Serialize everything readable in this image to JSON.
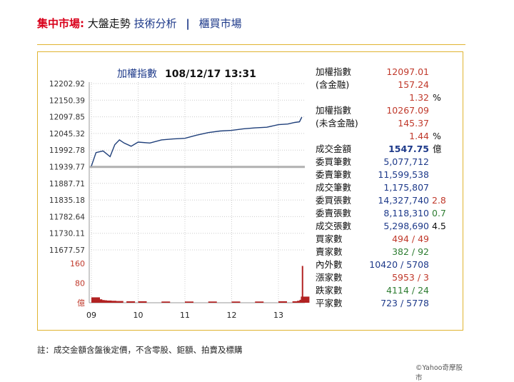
{
  "nav": {
    "lead": "集中市場:",
    "current": "大盤走勢",
    "tech": "技術分析",
    "separator": "|",
    "otc": "櫃買市場"
  },
  "chart_title": "加權指數",
  "chart_time": "108/12/17 13:31",
  "credit": "©Yahoo奇摩股市",
  "footnote": "註：成交金額含盤後定價，不含零股、鉅額、拍賣及標購",
  "stats": [
    {
      "label": "加權指數",
      "value": "12097.01",
      "color": "red"
    },
    {
      "label": "(含金融)",
      "value": "157.24",
      "color": "red"
    },
    {
      "label": "",
      "value": "1.32",
      "color": "red",
      "unit": "%"
    },
    {
      "label": "加權指數",
      "value": "10267.09",
      "color": "red"
    },
    {
      "label": "(未含金融)",
      "value": "145.37",
      "color": "red"
    },
    {
      "label": "",
      "value": "1.44",
      "color": "red",
      "unit": "%"
    },
    {
      "label": "成交金額",
      "value": "1547.75",
      "color": "blue",
      "bold": true,
      "unit": "億"
    },
    {
      "label": "委買筆數",
      "value": "5,077,712",
      "color": "blue"
    },
    {
      "label": "委賣筆數",
      "value": "11,599,538",
      "color": "blue"
    },
    {
      "label": "成交筆數",
      "value": "1,175,807",
      "color": "blue"
    },
    {
      "label": "委買張數",
      "value": "14,327,740",
      "color": "blue",
      "extra": "2.8",
      "extra_color": "red"
    },
    {
      "label": "委賣張數",
      "value": "8,118,310",
      "color": "blue",
      "extra": "0.7",
      "extra_color": "green"
    },
    {
      "label": "成交張數",
      "value": "5,298,690",
      "color": "blue",
      "extra": "4.5",
      "extra_color": "dark"
    },
    {
      "label": "買家數",
      "value": "494 / 49",
      "color": "red"
    },
    {
      "label": "賣家數",
      "value": "382 / 92",
      "color": "green"
    },
    {
      "label": "內外數",
      "value": "10420 / 5708",
      "color": "blue"
    },
    {
      "label": "漲家數",
      "value": "5953 / 3",
      "color": "red"
    },
    {
      "label": "跌家數",
      "value": "4114 / 24",
      "color": "green"
    },
    {
      "label": "平家數",
      "value": "723 / 5778",
      "color": "blue"
    }
  ],
  "colors": {
    "line": "#1f3f7a",
    "reference": "#b0b0b0",
    "volume": "#b22222",
    "grid": "#cccccc"
  },
  "chart_data": {
    "type": "line",
    "y_ticks": [
      "12202.92",
      "12150.39",
      "12097.85",
      "12045.32",
      "11992.78",
      "11939.77",
      "11887.71",
      "11835.18",
      "11782.64",
      "11730.11",
      "11677.57"
    ],
    "ylim": [
      11677.57,
      12202.92
    ],
    "reference": 11939.77,
    "x_ticks": [
      "09",
      "10",
      "11",
      "12",
      "13"
    ],
    "x_time": [
      9.0,
      9.1,
      9.25,
      9.4,
      9.5,
      9.6,
      9.7,
      9.85,
      10.0,
      10.25,
      10.5,
      10.75,
      11.0,
      11.25,
      11.5,
      11.75,
      12.0,
      12.25,
      12.5,
      12.75,
      13.0,
      13.2,
      13.35,
      13.45,
      13.5
    ],
    "index_values": [
      11942,
      11985,
      11990,
      11972,
      12010,
      12025,
      12015,
      12005,
      12018,
      12015,
      12025,
      12028,
      12030,
      12040,
      12048,
      12053,
      12055,
      12060,
      12063,
      12065,
      12073,
      12075,
      12080,
      12082,
      12097
    ],
    "volume_ticks": [
      "160",
      "80",
      "億"
    ],
    "volume_max": 160,
    "volume_time": [
      9.0,
      9.05,
      9.1,
      9.15,
      9.25,
      9.35,
      9.5,
      9.75,
      10.0,
      10.5,
      11.0,
      11.5,
      12.0,
      12.5,
      13.0,
      13.3,
      13.4,
      13.45,
      13.48,
      13.5
    ],
    "volume_values": [
      22,
      14,
      11,
      10,
      9,
      8,
      7,
      6,
      6,
      5,
      5,
      5,
      5,
      5,
      6,
      6,
      8,
      12,
      25,
      150
    ]
  }
}
